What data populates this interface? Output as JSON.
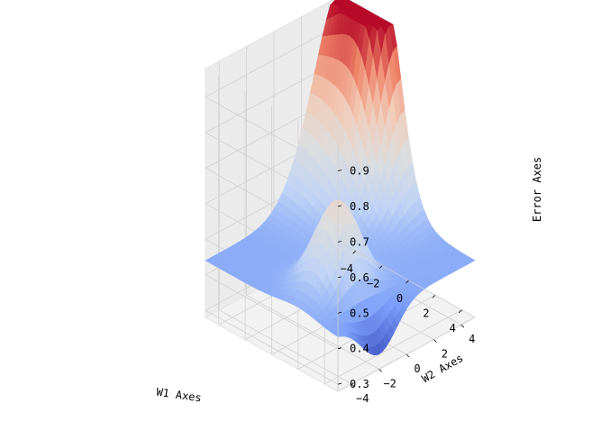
{
  "chart_data": {
    "type": "surface",
    "xlabel": "W1 Axes",
    "ylabel": "W2 Axes",
    "zlabel": "Error Axes",
    "xlim": [
      -5,
      5
    ],
    "ylim": [
      -5,
      5
    ],
    "zlim": [
      0.28,
      0.98
    ],
    "x_ticks": [
      -4,
      -2,
      0,
      2,
      4
    ],
    "y_ticks": [
      -4,
      -2,
      0,
      2,
      4
    ],
    "z_ticks": [
      0.3,
      0.4,
      0.5,
      0.6,
      0.7,
      0.8,
      0.9
    ],
    "x_tick_labels": [
      "−4",
      "−2",
      "0",
      "2",
      "4"
    ],
    "y_tick_labels": [
      "−4",
      "−2",
      "0",
      "2",
      "4"
    ],
    "z_tick_labels": [
      "0.3",
      "0.4",
      "0.5",
      "0.6",
      "0.7",
      "0.8",
      "0.9"
    ],
    "colormap": "coolwarm",
    "colormap_stops": [
      "#3b4cc0",
      "#7b9ff9",
      "#c0d4f5",
      "#dddddd",
      "#f2cbb7",
      "#ee8468",
      "#b40426"
    ],
    "surface_features": [
      {
        "kind": "peak",
        "w1": -5,
        "w2": 5,
        "error": 0.98
      },
      {
        "kind": "peak",
        "w1": -2,
        "w2": 5,
        "error": 0.9
      },
      {
        "kind": "peak",
        "w1": 2,
        "w2": -2,
        "error": 0.7
      },
      {
        "kind": "valley",
        "w1": 5,
        "w2": -2,
        "error": 0.3
      }
    ],
    "grid": true
  }
}
